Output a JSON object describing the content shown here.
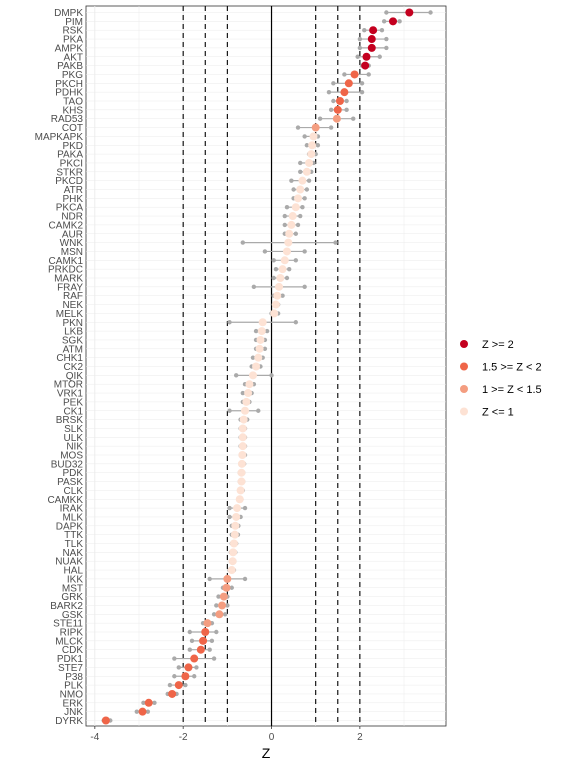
{
  "chart_data": {
    "type": "scatter",
    "xlabel": "Z",
    "xlim": [
      -4.2,
      3.95
    ],
    "xticks": [
      -4,
      -2,
      0,
      2
    ],
    "vlines": {
      "solid": [
        0
      ],
      "dashed": [
        -2,
        -1.5,
        -1,
        1,
        1.5,
        2
      ]
    },
    "legend": {
      "position": "right",
      "items": [
        {
          "label": "Z >= 2",
          "color": "#c4001f"
        },
        {
          "label": "1.5 >= Z < 2",
          "color": "#ef6548"
        },
        {
          "label": "1 >= Z < 1.5",
          "color": "#f49d80"
        },
        {
          "label": "Z <= 1",
          "color": "#fde2d4"
        }
      ]
    },
    "error_color": "#aaaaaa",
    "categories": [
      "DMPK",
      "PIM",
      "RSK",
      "PKA",
      "AMPK",
      "AKT",
      "PAKB",
      "PKG",
      "PKCH",
      "PDHK",
      "TAO",
      "KHS",
      "RAD53",
      "COT",
      "MAPKAPK",
      "PKD",
      "PAKA",
      "PKCI",
      "STKR",
      "PKCD",
      "ATR",
      "PHK",
      "PKCA",
      "NDR",
      "CAMK2",
      "AUR",
      "WNK",
      "MSN",
      "CAMK1",
      "PRKDC",
      "MARK",
      "FRAY",
      "RAF",
      "NEK",
      "MELK",
      "PKN",
      "LKB",
      "SGK",
      "ATM",
      "CHK1",
      "CK2",
      "QIK",
      "MTOR",
      "VRK1",
      "PEK",
      "CK1",
      "BRSK",
      "SLK",
      "ULK",
      "NIK",
      "MOS",
      "BUD32",
      "PDK",
      "PASK",
      "CLK",
      "CAMKK",
      "IRAK",
      "MLK",
      "DAPK",
      "TTK",
      "TLK",
      "NAK",
      "NUAK",
      "HAL",
      "IKK",
      "MST",
      "GRK",
      "BARK2",
      "GSK",
      "STE11",
      "RIPK",
      "MLCK",
      "CDK",
      "PDK1",
      "STE7",
      "P38",
      "PLK",
      "NMO",
      "ERK",
      "JNK",
      "DYRK"
    ],
    "z": [
      3.12,
      2.75,
      2.3,
      2.27,
      2.27,
      2.15,
      2.12,
      1.88,
      1.75,
      1.65,
      1.55,
      1.5,
      1.48,
      1.0,
      0.95,
      0.92,
      0.9,
      0.85,
      0.8,
      0.7,
      0.65,
      0.6,
      0.55,
      0.48,
      0.45,
      0.4,
      0.38,
      0.35,
      0.3,
      0.25,
      0.2,
      0.17,
      0.13,
      0.1,
      0.06,
      -0.2,
      -0.22,
      -0.25,
      -0.27,
      -0.3,
      -0.35,
      -0.42,
      -0.5,
      -0.53,
      -0.57,
      -0.6,
      -0.63,
      -0.65,
      -0.65,
      -0.65,
      -0.66,
      -0.67,
      -0.68,
      -0.68,
      -0.7,
      -0.72,
      -0.78,
      -0.8,
      -0.82,
      -0.83,
      -0.85,
      -0.87,
      -0.88,
      -0.9,
      -1.0,
      -1.02,
      -1.08,
      -1.12,
      -1.18,
      -1.45,
      -1.5,
      -1.55,
      -1.6,
      -1.75,
      -1.88,
      -1.95,
      -2.1,
      -2.25,
      -2.78,
      -2.92,
      -3.75
    ],
    "z_low": [
      2.6,
      2.55,
      2.1,
      2.0,
      2.0,
      1.95,
      2.05,
      1.65,
      1.4,
      1.3,
      1.4,
      1.35,
      1.1,
      0.6,
      0.75,
      0.8,
      0.85,
      0.65,
      0.65,
      0.45,
      0.5,
      0.5,
      0.35,
      0.3,
      0.3,
      0.3,
      -0.65,
      -0.15,
      0.05,
      0.1,
      0.05,
      -0.4,
      0.05,
      0.05,
      0.0,
      -0.95,
      -0.35,
      -0.35,
      -0.35,
      -0.42,
      -0.45,
      -0.8,
      -0.6,
      -0.65,
      -0.65,
      -0.95,
      -0.7,
      -0.7,
      -0.7,
      -0.7,
      -0.7,
      -0.7,
      -0.72,
      -0.72,
      -0.72,
      -0.75,
      -0.95,
      -0.95,
      -0.9,
      -0.9,
      -0.9,
      -0.92,
      -0.92,
      -0.95,
      -1.4,
      -1.1,
      -1.2,
      -1.25,
      -1.3,
      -1.55,
      -1.85,
      -1.8,
      -1.85,
      -2.2,
      -2.1,
      -2.2,
      -2.3,
      -2.35,
      -2.9,
      -3.05,
      -3.8
    ],
    "z_high": [
      3.6,
      2.9,
      2.5,
      2.6,
      2.6,
      2.45,
      2.2,
      2.2,
      2.05,
      2.05,
      1.7,
      1.7,
      1.85,
      1.35,
      1.05,
      1.05,
      1.0,
      0.95,
      0.9,
      0.85,
      0.8,
      0.75,
      0.7,
      0.65,
      0.6,
      0.55,
      1.45,
      0.75,
      0.55,
      0.4,
      0.35,
      0.75,
      0.25,
      0.15,
      0.15,
      0.55,
      -0.1,
      -0.15,
      -0.15,
      -0.2,
      -0.25,
      0.0,
      -0.4,
      -0.45,
      -0.5,
      -0.3,
      -0.55,
      -0.6,
      -0.6,
      -0.6,
      -0.6,
      -0.62,
      -0.64,
      -0.64,
      -0.65,
      -0.68,
      -0.6,
      -0.7,
      -0.75,
      -0.76,
      -0.8,
      -0.82,
      -0.84,
      -0.85,
      -0.6,
      -0.9,
      -1.0,
      -1.0,
      -1.05,
      -1.35,
      -1.25,
      -1.35,
      -1.4,
      -1.3,
      -1.7,
      -1.75,
      -1.95,
      -2.15,
      -2.65,
      -2.8,
      -3.65
    ]
  }
}
